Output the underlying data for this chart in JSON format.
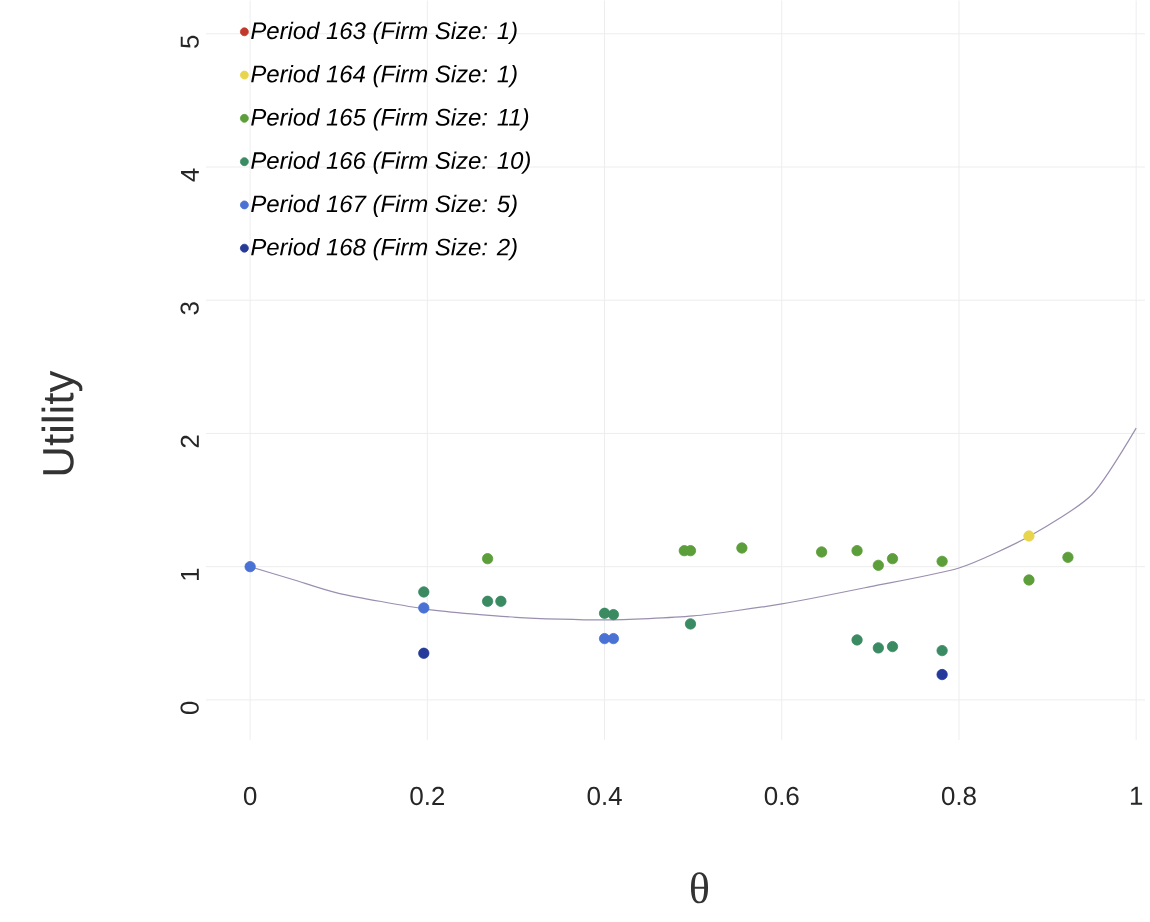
{
  "chart_data": {
    "type": "scatter",
    "xlabel": "θ",
    "ylabel": "Utility",
    "xlim": [
      -0.05,
      1.01
    ],
    "ylim": [
      -0.3,
      5.25
    ],
    "xticks": [
      0,
      0.2,
      0.4,
      0.6,
      0.8,
      1
    ],
    "yticks": [
      0,
      1,
      2,
      3,
      4,
      5
    ],
    "grid": true,
    "legend": "top left",
    "series": [
      {
        "name": "Period 163 (Firm Size: 1)",
        "color": "#c0392b"
      },
      {
        "name": "Period 164 (Firm Size: 1)",
        "color": "#e8d44d",
        "x": [
          0.879
        ],
        "values": [
          1.23
        ]
      },
      {
        "name": "Period 165 (Firm Size: 11)",
        "color": "#5c9e3a",
        "x": [
          0.268,
          0.49,
          0.497,
          0.555,
          0.645,
          0.685,
          0.709,
          0.725,
          0.781,
          0.879,
          0.923
        ],
        "values": [
          1.06,
          1.12,
          1.12,
          1.14,
          1.11,
          1.12,
          1.01,
          1.06,
          1.04,
          0.9,
          1.07
        ]
      },
      {
        "name": "Period 166 (Firm Size: 10)",
        "color": "#3a8a62",
        "x": [
          0.196,
          0.268,
          0.283,
          0.4,
          0.41,
          0.497,
          0.685,
          0.709,
          0.725,
          0.781
        ],
        "values": [
          0.81,
          0.74,
          0.74,
          0.65,
          0.64,
          0.57,
          0.45,
          0.39,
          0.4,
          0.37
        ]
      },
      {
        "name": "Period 167 (Firm Size: 5)",
        "color": "#4a72d4",
        "x": [
          0,
          0.196,
          0.4,
          0.41
        ],
        "values": [
          1.0,
          0.69,
          0.46,
          0.46
        ]
      },
      {
        "name": "Period 168 (Firm Size: 2)",
        "color": "#263a9a",
        "x": [
          0.196,
          0.781
        ],
        "values": [
          0.35,
          0.19
        ]
      },
      {
        "type": "line",
        "marker": "none",
        "color": "#9a8fb0",
        "x": [
          0,
          0.05,
          0.1,
          0.2,
          0.3,
          0.4,
          0.5,
          0.6,
          0.7,
          0.8,
          0.88,
          0.95,
          1.0
        ],
        "values": [
          1.0,
          0.9,
          0.8,
          0.68,
          0.62,
          0.6,
          0.63,
          0.72,
          0.85,
          0.99,
          1.23,
          1.54,
          2.04
        ]
      }
    ]
  }
}
